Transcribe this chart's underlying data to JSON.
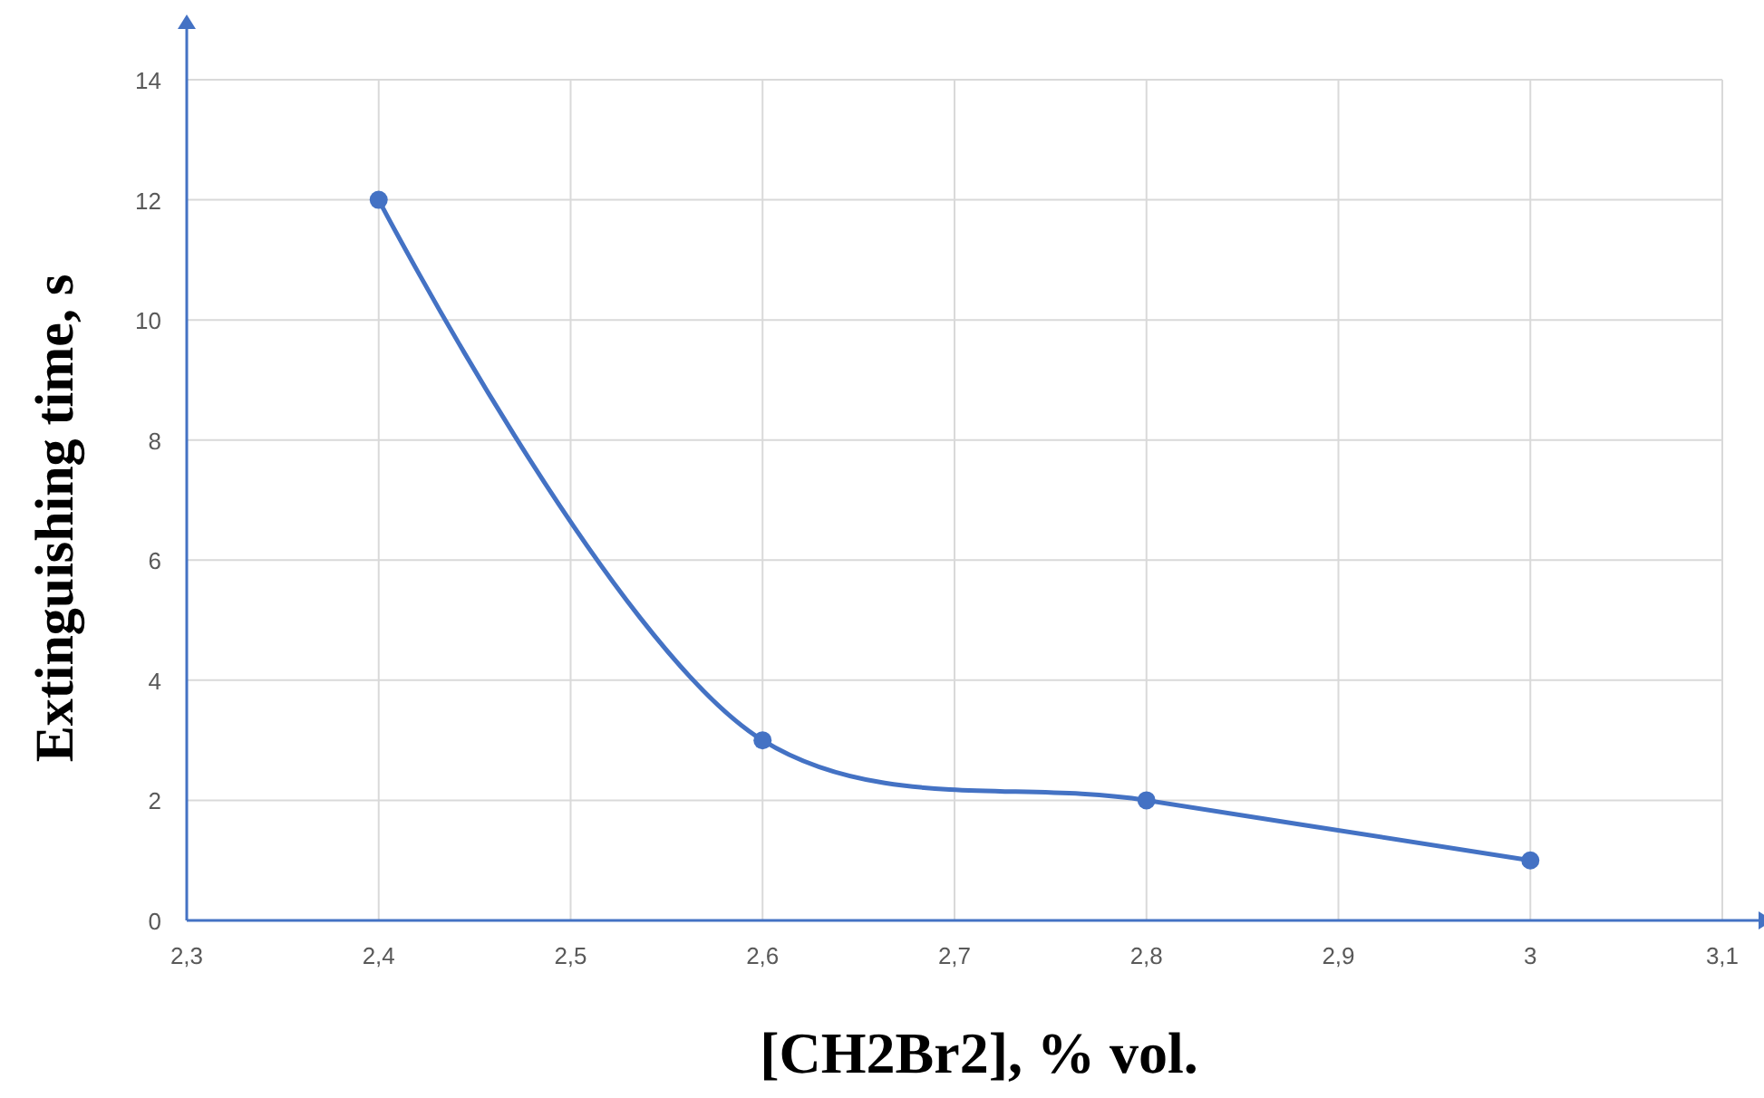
{
  "chart_data": {
    "type": "line",
    "xlabel": "[CH2Br2], % vol.",
    "ylabel": "Extinguishing time, s",
    "x": [
      2.4,
      2.6,
      2.8,
      3
    ],
    "series": [
      {
        "color": "#4472c4",
        "values": [
          12,
          3,
          2,
          1
        ]
      }
    ],
    "xlim": [
      2.3,
      3.1
    ],
    "xticks": [
      {
        "value": 2.3,
        "label": "2,3"
      },
      {
        "value": 2.4,
        "label": "2,4"
      },
      {
        "value": 2.5,
        "label": "2,5"
      },
      {
        "value": 2.6,
        "label": "2,6"
      },
      {
        "value": 2.7,
        "label": "2,7"
      },
      {
        "value": 2.8,
        "label": "2,8"
      },
      {
        "value": 2.9,
        "label": "2,9"
      },
      3,
      {
        "value": 3.1,
        "label": "3,1"
      }
    ],
    "ylim": [
      0,
      14
    ],
    "yticks": [
      0,
      2,
      4,
      6,
      8,
      10,
      12,
      14
    ],
    "grid": true,
    "marker": "circle",
    "line_style": "solid"
  }
}
